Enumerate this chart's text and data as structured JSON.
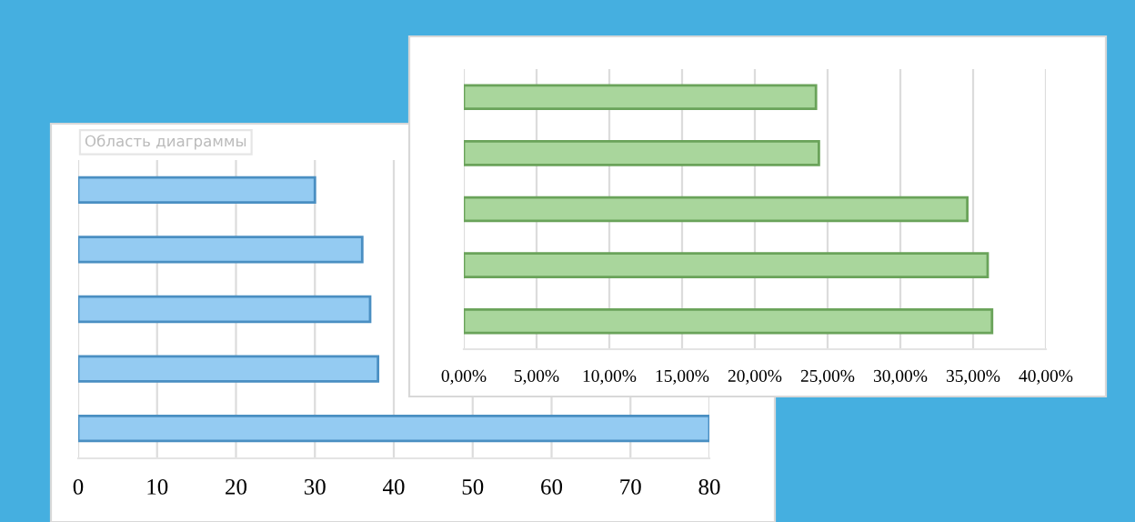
{
  "chart_data": [
    {
      "type": "bar",
      "orientation": "horizontal",
      "categories": [
        null,
        null,
        null,
        null,
        null
      ],
      "values": [
        30,
        36,
        37,
        38,
        80
      ],
      "color": "#94cbf2",
      "xlim": [
        0,
        80
      ],
      "xticks": [
        0,
        10,
        20,
        30,
        40,
        50,
        60,
        70,
        80
      ],
      "grid": "x",
      "annotations": [
        "Область диаграммы"
      ]
    },
    {
      "type": "bar",
      "orientation": "horizontal",
      "categories": [
        null,
        null,
        null,
        null,
        null
      ],
      "values": [
        24.2,
        24.4,
        34.6,
        36.0,
        36.3
      ],
      "color": "#a9d69c",
      "xlim": [
        0,
        40
      ],
      "xticks": [
        {
          "value": 0,
          "label": "0,00%"
        },
        {
          "value": 5,
          "label": "5,00%"
        },
        {
          "value": 10,
          "label": "10,00%"
        },
        {
          "value": 15,
          "label": "15,00%"
        },
        {
          "value": 20,
          "label": "20,00%"
        },
        {
          "value": 25,
          "label": "25,00%"
        },
        {
          "value": 30,
          "label": "30,00%"
        },
        {
          "value": 35,
          "label": "35,00%"
        },
        {
          "value": 40,
          "label": "40,00%"
        }
      ],
      "grid": "x"
    }
  ]
}
